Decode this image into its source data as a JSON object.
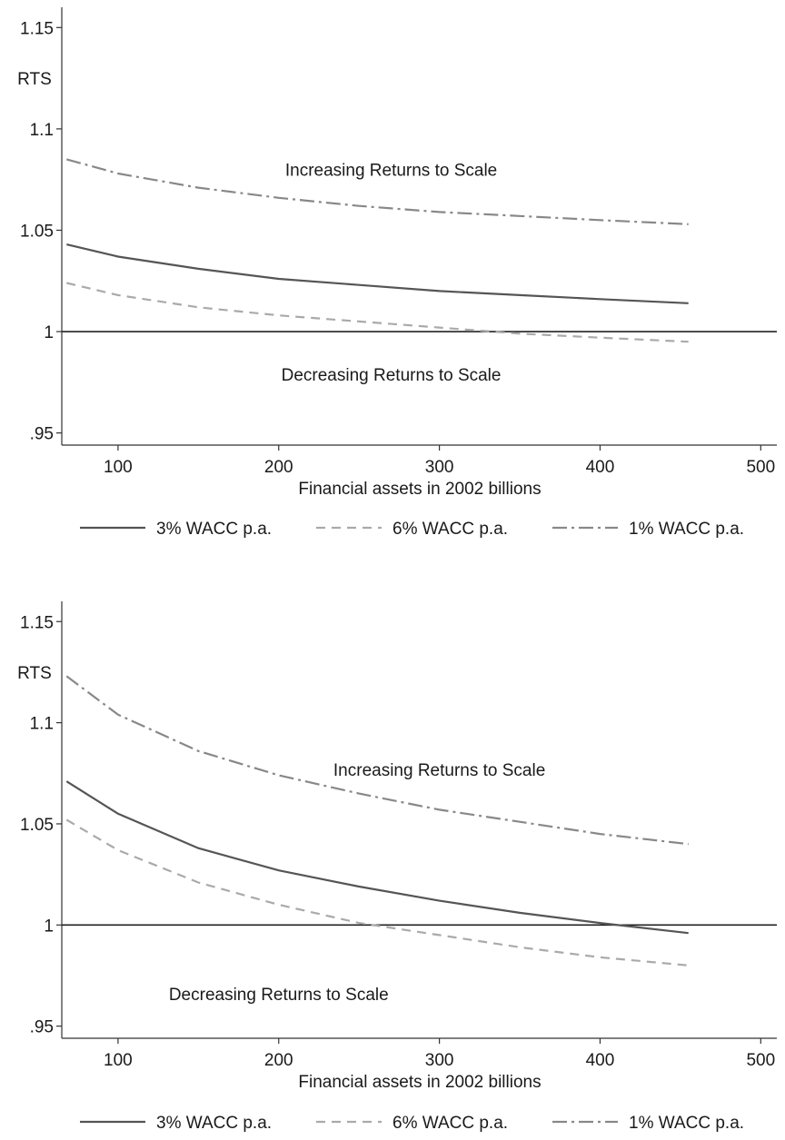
{
  "chart_data": [
    {
      "type": "line",
      "title": "",
      "xlabel": "Financial assets in 2002 billions",
      "ylabel": "RTS",
      "xlim": [
        65,
        510
      ],
      "ylim": [
        0.944,
        1.16
      ],
      "xticks": [
        100,
        200,
        300,
        400,
        500
      ],
      "yticks": [
        0.95,
        1,
        1.05,
        1.1,
        1.15
      ],
      "ytick_labels": [
        ".95",
        "1",
        "1.05",
        "1.1",
        "1.15"
      ],
      "reference_line": 1,
      "grid": false,
      "legend_position": "bottom",
      "annotations": [
        {
          "text": "Increasing Returns to Scale",
          "x": 270,
          "y": 1.08
        },
        {
          "text": "Decreasing Returns to Scale",
          "x": 270,
          "y": 0.979
        }
      ],
      "x": [
        68,
        100,
        150,
        200,
        250,
        300,
        350,
        400,
        455
      ],
      "series": [
        {
          "name": "3% WACC p.a.",
          "style": "solid",
          "color": "#555555",
          "values": [
            1.043,
            1.037,
            1.031,
            1.026,
            1.023,
            1.02,
            1.018,
            1.016,
            1.014
          ]
        },
        {
          "name": "6% WACC p.a.",
          "style": "dashed",
          "color": "#aaaaaa",
          "values": [
            1.024,
            1.018,
            1.012,
            1.008,
            1.005,
            1.002,
            0.999,
            0.997,
            0.995
          ]
        },
        {
          "name": "1% WACC p.a.",
          "style": "dashdot",
          "color": "#888888",
          "values": [
            1.085,
            1.078,
            1.071,
            1.066,
            1.062,
            1.059,
            1.057,
            1.055,
            1.053
          ]
        }
      ]
    },
    {
      "type": "line",
      "title": "",
      "xlabel": "Financial assets in 2002 billions",
      "ylabel": "RTS",
      "xlim": [
        65,
        510
      ],
      "ylim": [
        0.944,
        1.16
      ],
      "xticks": [
        100,
        200,
        300,
        400,
        500
      ],
      "yticks": [
        0.95,
        1,
        1.05,
        1.1,
        1.15
      ],
      "ytick_labels": [
        ".95",
        "1",
        "1.05",
        "1.1",
        "1.15"
      ],
      "reference_line": 1,
      "grid": false,
      "legend_position": "bottom",
      "annotations": [
        {
          "text": "Increasing Returns to Scale",
          "x": 300,
          "y": 1.077
        },
        {
          "text": "Decreasing Returns to Scale",
          "x": 200,
          "y": 0.966
        }
      ],
      "x": [
        68,
        100,
        150,
        200,
        250,
        300,
        350,
        400,
        455
      ],
      "series": [
        {
          "name": "3% WACC p.a.",
          "style": "solid",
          "color": "#555555",
          "values": [
            1.071,
            1.055,
            1.038,
            1.027,
            1.019,
            1.012,
            1.006,
            1.001,
            0.996
          ]
        },
        {
          "name": "6% WACC p.a.",
          "style": "dashed",
          "color": "#aaaaaa",
          "values": [
            1.052,
            1.037,
            1.021,
            1.01,
            1.001,
            0.995,
            0.989,
            0.984,
            0.98
          ]
        },
        {
          "name": "1% WACC p.a.",
          "style": "dashdot",
          "color": "#888888",
          "values": [
            1.123,
            1.104,
            1.086,
            1.074,
            1.065,
            1.057,
            1.051,
            1.045,
            1.04
          ]
        }
      ]
    }
  ]
}
